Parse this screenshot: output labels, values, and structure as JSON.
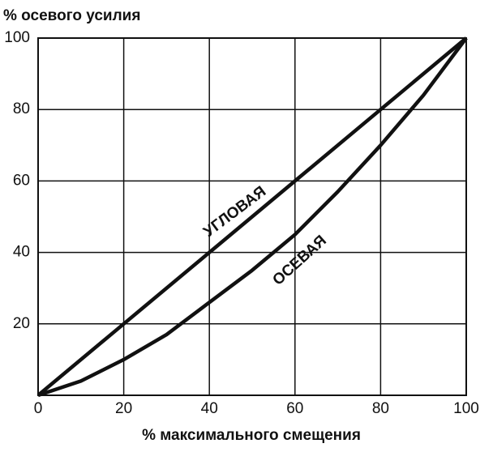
{
  "chart_data": {
    "type": "line",
    "y_label": "% осевого усилия",
    "x_label": "% максимального смещения",
    "xlim": [
      0,
      100
    ],
    "xticks": [
      0,
      20,
      40,
      60,
      80,
      100
    ],
    "ylim": [
      0,
      100
    ],
    "yticks": [
      20,
      40,
      60,
      80,
      100
    ],
    "grid": true,
    "series": [
      {
        "name": "УГЛОВАЯ",
        "color": "#111111",
        "x": [
          0,
          20,
          40,
          60,
          80,
          100
        ],
        "values": [
          0,
          20,
          40,
          60,
          80,
          100
        ]
      },
      {
        "name": "ОСЕВАЯ",
        "color": "#111111",
        "x": [
          0,
          10,
          20,
          30,
          40,
          50,
          55,
          60,
          70,
          80,
          90,
          100
        ],
        "values": [
          0,
          4,
          10,
          17,
          26,
          35,
          40,
          45,
          57,
          70,
          84,
          100
        ]
      }
    ]
  }
}
